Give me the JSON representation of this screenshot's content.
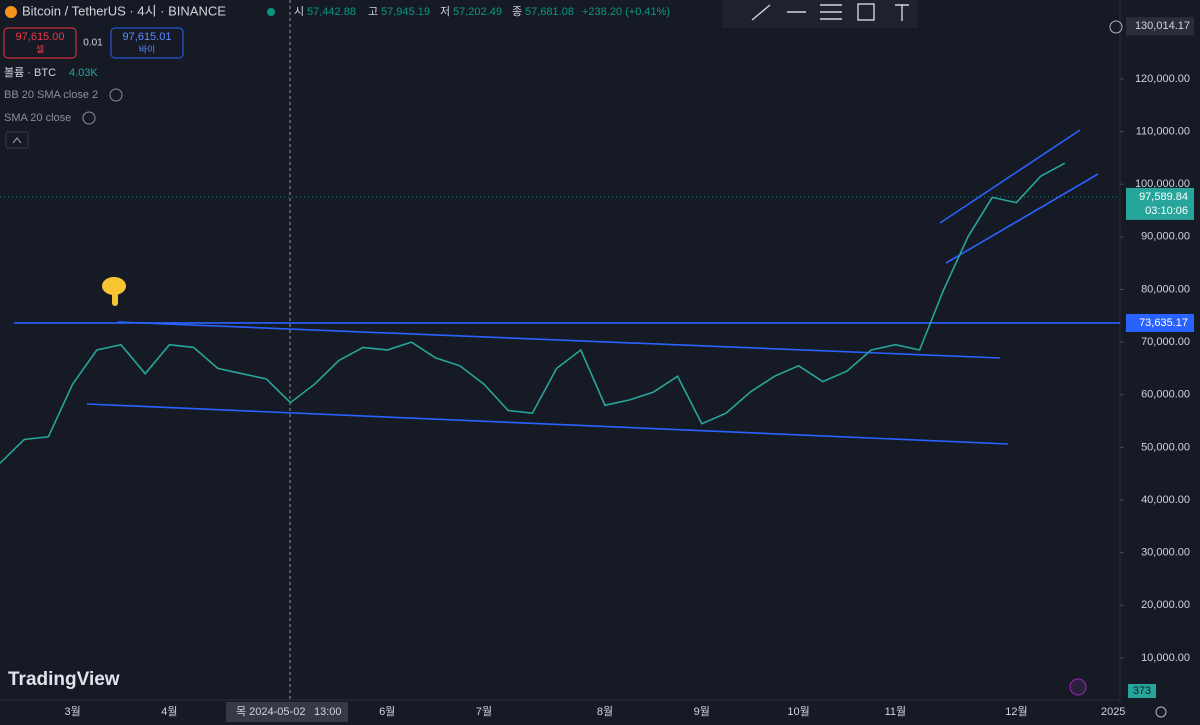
{
  "header": {
    "symbol": "Bitcoin / TetherUS · 4시 · BINANCE",
    "open_label": "시",
    "open": "57,442.88",
    "high_label": "고",
    "high": "57,945.19",
    "low_label": "저",
    "low": "57,202.49",
    "close_label": "종",
    "close": "57,681.08",
    "change": "+238.20 (+0.41%)"
  },
  "order": {
    "sell_price": "97,615.00",
    "sell_label": "셀",
    "spread": "0.01",
    "buy_price": "97,615.01",
    "buy_label": "바이"
  },
  "indicators": [
    {
      "name": "볼륨 · BTC",
      "value": "4.03K"
    },
    {
      "name": "BB 20 SMA close 2"
    },
    {
      "name": "SMA 20 close"
    }
  ],
  "crosshair": {
    "date": "목 2024-05-02",
    "time": "13:00"
  },
  "volume_label": "373",
  "watermark": "TradingView",
  "chart_data": {
    "type": "line",
    "color": "#26a69a",
    "categories": [
      null,
      null,
      null,
      "3월",
      null,
      null,
      null,
      "4월",
      null,
      null,
      null,
      null,
      null,
      null,
      null,
      null,
      "6월",
      null,
      null,
      null,
      "7월",
      null,
      null,
      null,
      null,
      "8월",
      null,
      null,
      null,
      "9월",
      null,
      null,
      null,
      "10월",
      null,
      null,
      null,
      "11월",
      null,
      null,
      null,
      null,
      "12월",
      null,
      null,
      null,
      "2025"
    ],
    "values": [
      47000,
      51500,
      52000,
      62000,
      68500,
      69500,
      64000,
      69500,
      69000,
      65000,
      64000,
      63000,
      58500,
      62000,
      66500,
      69000,
      68500,
      70000,
      67000,
      65500,
      62000,
      57000,
      56500,
      65000,
      68500,
      58000,
      59000,
      60500,
      63500,
      54500,
      56500,
      60500,
      63500,
      65500,
      62500,
      64500,
      68500,
      69500,
      68500,
      80000,
      90000,
      97500,
      96500,
      101500,
      104000,
      null,
      null
    ],
    "ylim": [
      2000,
      135000
    ],
    "yticks": [
      {
        "value": 10000,
        "label": "10,000.00"
      },
      {
        "value": 20000,
        "label": "20,000.00"
      },
      {
        "value": 30000,
        "label": "30,000.00"
      },
      {
        "value": 40000,
        "label": "40,000.00"
      },
      {
        "value": 50000,
        "label": "50,000.00"
      },
      {
        "value": 60000,
        "label": "60,000.00"
      },
      {
        "value": 70000,
        "label": "70,000.00"
      },
      {
        "value": 80000,
        "label": "80,000.00"
      },
      {
        "value": 90000,
        "label": "90,000.00"
      },
      {
        "value": 100000,
        "label": "100,000.00"
      },
      {
        "value": 110000,
        "label": "110,000.00"
      },
      {
        "value": 120000,
        "label": "120,000.00"
      }
    ],
    "axis_top": {
      "value": 130014.17,
      "label": "130,014.17"
    },
    "last_price": {
      "value": 97589.84,
      "label": "97,589.84"
    },
    "countdown": "03:10:06",
    "level": {
      "value": 73635.17,
      "label": "73,635.17"
    },
    "grid": false
  }
}
